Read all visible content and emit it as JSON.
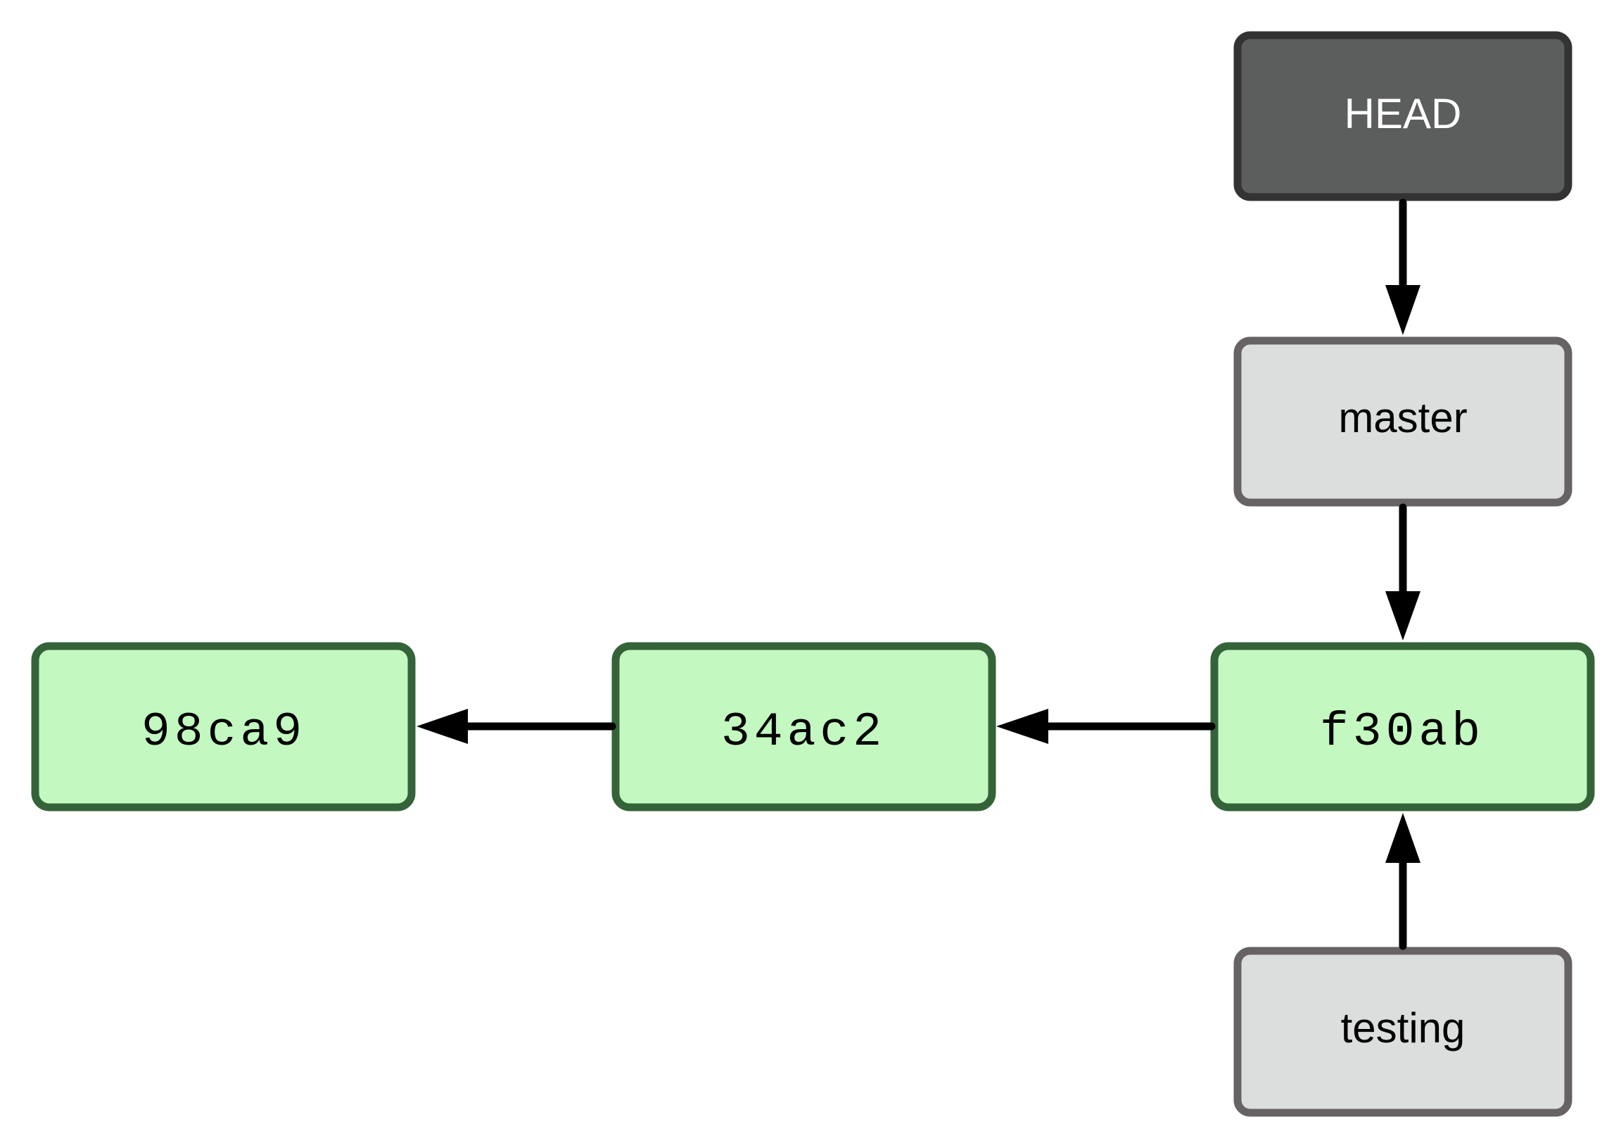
{
  "colors": {
    "commit_fill": "#c3f8c0",
    "commit_stroke": "#356339",
    "branch_fill": "#dbdedc",
    "branch_stroke": "#676364",
    "head_fill": "#5c5e5d",
    "head_stroke": "#333333",
    "head_text": "#ffffff",
    "text": "#000000",
    "arrow": "#000000"
  },
  "commits": [
    {
      "id": "98ca9"
    },
    {
      "id": "34ac2"
    },
    {
      "id": "f30ab"
    }
  ],
  "refs": {
    "head": {
      "label": "HEAD"
    },
    "master": {
      "label": "master"
    },
    "testing": {
      "label": "testing"
    }
  },
  "edges": [
    {
      "from": "34ac2",
      "to": "98ca9"
    },
    {
      "from": "f30ab",
      "to": "34ac2"
    },
    {
      "from": "HEAD",
      "to": "master"
    },
    {
      "from": "master",
      "to": "f30ab"
    },
    {
      "from": "testing",
      "to": "f30ab"
    }
  ]
}
